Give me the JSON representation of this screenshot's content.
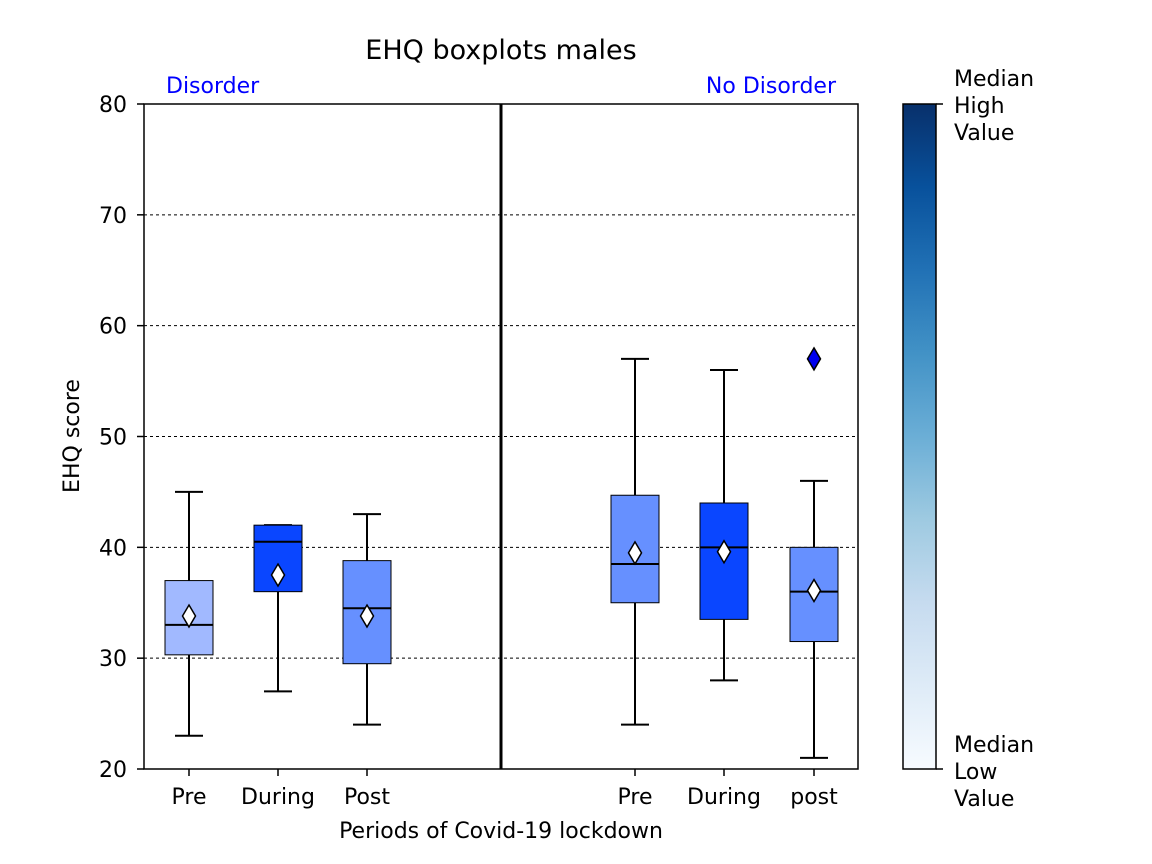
{
  "chart_data": {
    "type": "box",
    "title": "EHQ boxplots males",
    "xlabel": "Periods of Covid-19 lockdown",
    "ylabel": "EHQ score",
    "ylim": [
      20,
      80
    ],
    "yticks": [
      20,
      30,
      40,
      50,
      60,
      70,
      80
    ],
    "grid": "horizontal dashed",
    "groups": [
      {
        "label": "Disorder",
        "label_color": "#0000ff",
        "boxes": [
          {
            "category": "Pre",
            "whisker_low": 23,
            "q1": 30.3,
            "median": 33,
            "q3": 37,
            "whisker_high": 45,
            "mean": 33.8,
            "fill": "#a1b9ff",
            "outliers": []
          },
          {
            "category": "During",
            "whisker_low": 27,
            "q1": 36,
            "median": 40.5,
            "q3": 42,
            "whisker_high": 42,
            "mean": 37.5,
            "fill": "#0a46ff",
            "outliers": []
          },
          {
            "category": "Post",
            "whisker_low": 24,
            "q1": 29.5,
            "median": 34.5,
            "q3": 38.8,
            "whisker_high": 43,
            "mean": 33.8,
            "fill": "#6690ff",
            "outliers": []
          }
        ]
      },
      {
        "label": "No Disorder",
        "label_color": "#0000ff",
        "boxes": [
          {
            "category": "Pre",
            "whisker_low": 24,
            "q1": 35,
            "median": 38.5,
            "q3": 44.7,
            "whisker_high": 57,
            "mean": 39.5,
            "fill": "#6690ff",
            "outliers": []
          },
          {
            "category": "During",
            "whisker_low": 28,
            "q1": 33.5,
            "median": 40,
            "q3": 44,
            "whisker_high": 56,
            "mean": 39.6,
            "fill": "#0a46ff",
            "outliers": []
          },
          {
            "category": "post",
            "whisker_low": 21,
            "q1": 31.5,
            "median": 36,
            "q3": 40,
            "whisker_high": 46,
            "mean": 36.1,
            "fill": "#6690ff",
            "outliers": [
              57
            ]
          }
        ]
      }
    ],
    "colorbar": {
      "top_label": "Median\nHigh\nValue",
      "bottom_label": "Median\nLow\nValue",
      "colormap": "Blues"
    },
    "mean_marker": "white diamond",
    "outlier_marker": "blue diamond",
    "outlier_color": "#0000ee"
  }
}
